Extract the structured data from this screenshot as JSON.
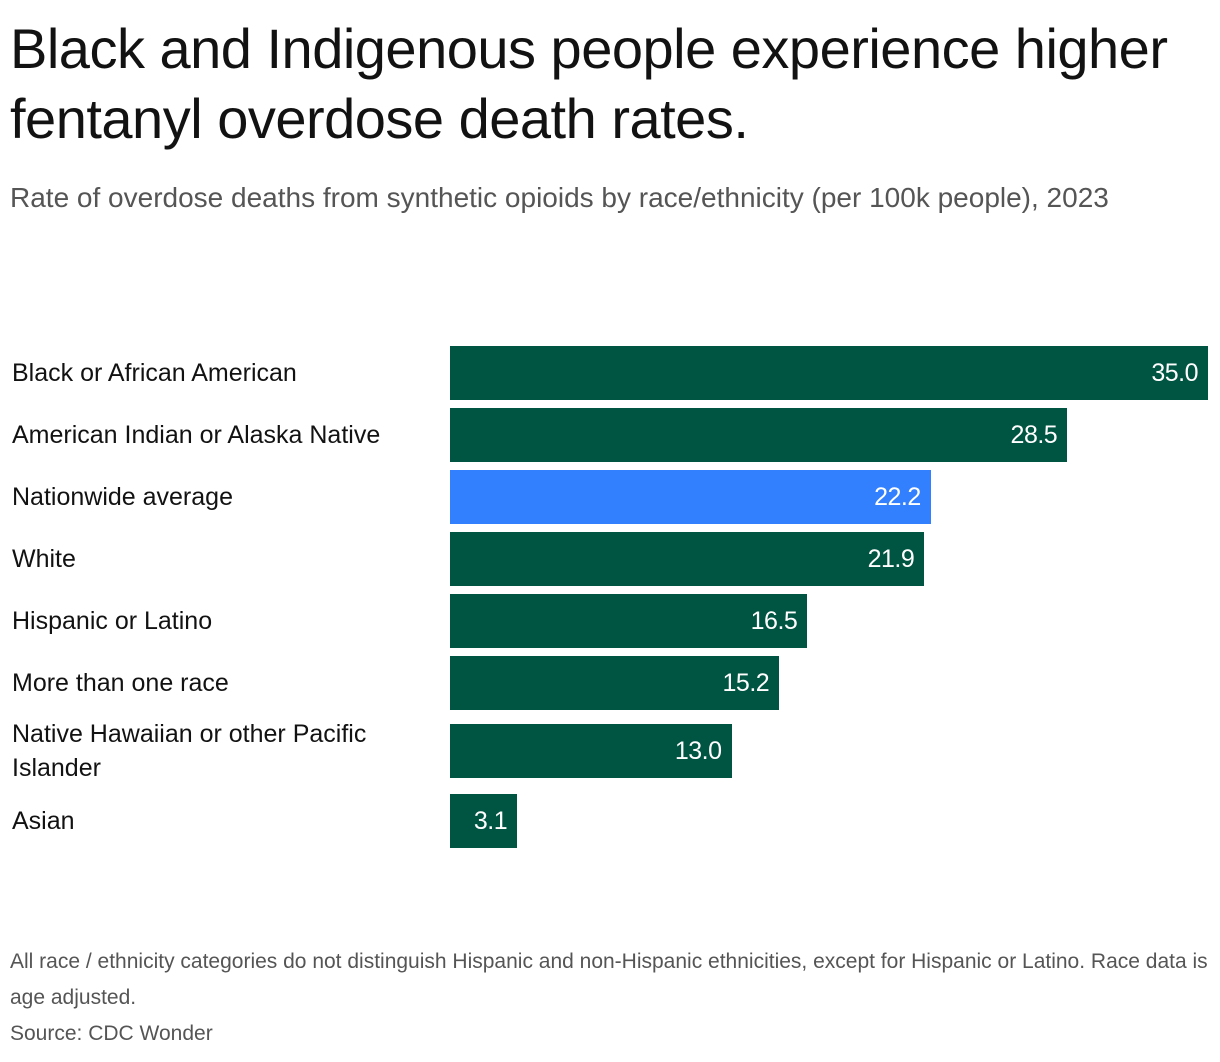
{
  "title": "Black and Indigenous people experience higher fentanyl overdose death rates.",
  "subtitle": "Rate of overdose deaths from synthetic opioids by race/ethnicity (per 100k people), 2023",
  "footnote": "All race / ethnicity categories do not distinguish Hispanic and non-Hispanic ethnicities, except for Hispanic or Latino. Race data is age adjusted.",
  "source": "Source: CDC Wonder",
  "colors": {
    "bar": "#005442",
    "highlight": "#3380ff",
    "value_text": "#ffffff"
  },
  "chart_data": {
    "type": "bar",
    "orientation": "horizontal",
    "title": "Black and Indigenous people experience higher fentanyl overdose death rates.",
    "subtitle": "Rate of overdose deaths from synthetic opioids by race/ethnicity (per 100k people), 2023",
    "xlabel": "",
    "ylabel": "",
    "xlim": [
      0,
      35
    ],
    "grid": false,
    "categories": [
      "Black or African American",
      "American Indian or Alaska Native",
      "Nationwide average",
      "White",
      "Hispanic or Latino",
      "More than one race",
      "Native Hawaiian or other Pacific Islander",
      "Asian"
    ],
    "values": [
      35.0,
      28.5,
      22.2,
      21.9,
      16.5,
      15.2,
      13.0,
      3.1
    ],
    "value_labels": [
      "35.0",
      "28.5",
      "22.2",
      "21.9",
      "16.5",
      "15.2",
      "13.0",
      "3.1"
    ],
    "highlight": [
      "Nationwide average"
    ]
  }
}
